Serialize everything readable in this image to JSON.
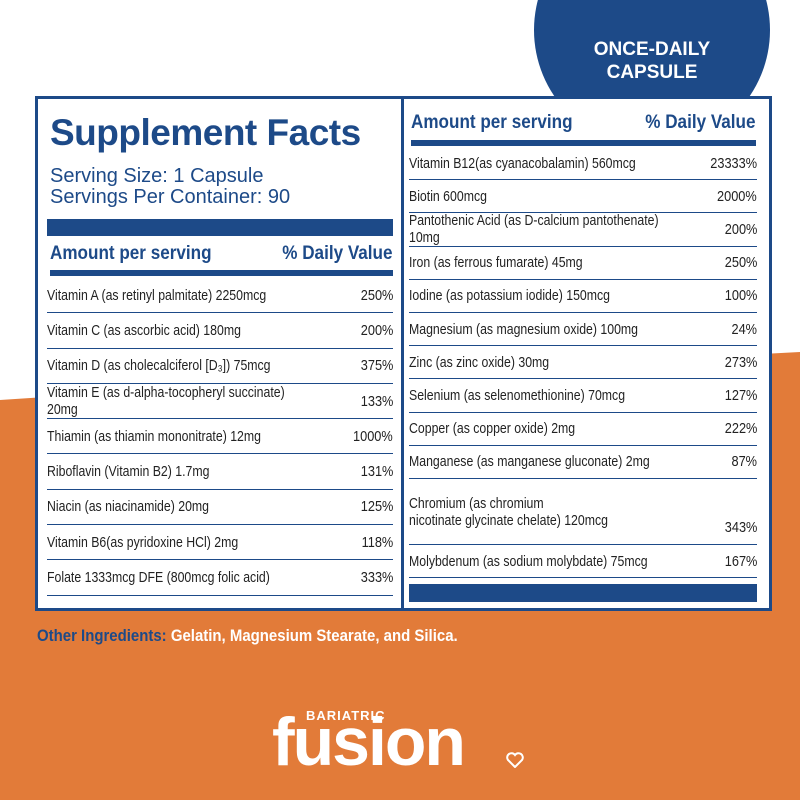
{
  "badge": {
    "lines": [
      "ONCE-DAILY",
      "CAPSULE"
    ]
  },
  "facts": {
    "title": "Supplement Facts",
    "serving_size": "Serving Size: 1 Capsule",
    "servings_per_container": "Servings Per Container: 90",
    "left": {
      "header": [
        "Amount per serving",
        "% Daily Value"
      ],
      "rows": [
        [
          "Vitamin A (as retinyl palmitate) 2250mcg",
          "250%"
        ],
        [
          "Vitamin C (as ascorbic acid) 180mg",
          "200%"
        ],
        [
          "Vitamin D (as cholecalciferol [D₃]) 75mcg",
          "375%"
        ],
        [
          "Vitamin E (as d-alpha-tocopheryl succinate) 20mg",
          "133%"
        ],
        [
          "Thiamin (as thiamin mononitrate) 12mg",
          "1000%"
        ],
        [
          "Riboflavin (Vitamin B2) 1.7mg",
          "131%"
        ],
        [
          "Niacin (as niacinamide) 20mg",
          "125%"
        ],
        [
          "Vitamin B6(as pyridoxine HCl) 2mg",
          "118%"
        ],
        [
          "Folate 1333mcg DFE (800mcg folic acid)",
          "333%"
        ]
      ]
    },
    "right": {
      "header": [
        "Amount per serving",
        "% Daily Value"
      ],
      "rows": [
        [
          "Vitamin B12(as cyanacobalamin) 560mcg",
          "23333%"
        ],
        [
          "Biotin 600mcg",
          "2000%"
        ],
        [
          "Pantothenic Acid (as D-calcium pantothenate) 10mg",
          "200%"
        ],
        [
          "Iron (as ferrous fumarate) 45mg",
          "250%"
        ],
        [
          "Iodine (as potassium iodide) 150mcg",
          "100%"
        ],
        [
          "Magnesium (as magnesium oxide) 100mg",
          "24%"
        ],
        [
          "Zinc (as zinc oxide) 30mg",
          "273%"
        ],
        [
          "Selenium (as selenomethionine) 70mcg",
          "127%"
        ],
        [
          "Copper (as copper oxide) 2mg",
          "222%"
        ],
        [
          "Manganese (as manganese gluconate) 2mg",
          "87%"
        ],
        [
          "Chromium (as chromium\n    nicotinate glycinate chelate) 120mcg",
          "343%"
        ],
        [
          "Molybdenum (as sodium molybdate) 75mcg",
          "167%"
        ]
      ]
    }
  },
  "other_ingredients": {
    "label": "Other Ingredients:",
    "text": "Gelatin, Magnesium Stearate, and Silica."
  },
  "logo": {
    "tagline": "BARIATRIC",
    "name": "fusion"
  }
}
